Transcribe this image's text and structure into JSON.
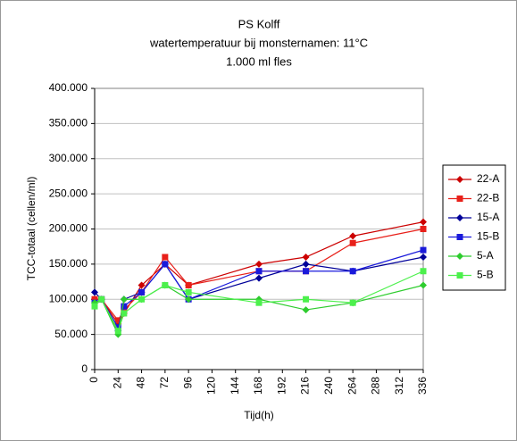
{
  "chart_data": {
    "type": "line",
    "title": "PS Kolff",
    "subtitle": "watertemperatuur bij monsternamen: 11°C",
    "subtitle2": "1.000 ml fles",
    "x_label": "Tijd(h)",
    "y_label": "TCC-totaal (cellen/ml)",
    "x": [
      0,
      7,
      24,
      30,
      48,
      72,
      96,
      168,
      216,
      264,
      336
    ],
    "series": [
      {
        "name": "22-A",
        "color": "#cc0000",
        "marker": "diamond",
        "values": [
          100000,
          100000,
          65000,
          80000,
          120000,
          150000,
          120000,
          150000,
          160000,
          190000,
          210000
        ]
      },
      {
        "name": "22-B",
        "color": "#e8201a",
        "marker": "square",
        "values": [
          100000,
          100000,
          70000,
          85000,
          110000,
          160000,
          120000,
          140000,
          140000,
          180000,
          200000
        ]
      },
      {
        "name": "15-A",
        "color": "#000099",
        "marker": "diamond",
        "values": [
          110000,
          100000,
          55000,
          100000,
          110000,
          150000,
          100000,
          130000,
          150000,
          140000,
          160000
        ]
      },
      {
        "name": "15-B",
        "color": "#1a1adb",
        "marker": "square",
        "values": [
          95000,
          100000,
          60000,
          90000,
          110000,
          150000,
          100000,
          140000,
          140000,
          140000,
          170000
        ]
      },
      {
        "name": "5-A",
        "color": "#2ecc2e",
        "marker": "diamond",
        "values": [
          95000,
          100000,
          50000,
          100000,
          100000,
          120000,
          100000,
          100000,
          85000,
          95000,
          120000
        ]
      },
      {
        "name": "5-B",
        "color": "#4cf04c",
        "marker": "square",
        "values": [
          90000,
          100000,
          55000,
          80000,
          100000,
          120000,
          110000,
          95000,
          100000,
          95000,
          140000
        ]
      }
    ],
    "xlim": [
      0,
      336
    ],
    "xticks": [
      0,
      24,
      48,
      72,
      96,
      120,
      144,
      168,
      192,
      216,
      240,
      264,
      288,
      312,
      336
    ],
    "ylim": [
      0,
      400000
    ],
    "yticks": [
      0,
      {
        "value": 50000,
        "label": "50.000"
      },
      {
        "value": 100000,
        "label": "100.000"
      },
      {
        "value": 150000,
        "label": "150.000"
      },
      {
        "value": 200000,
        "label": "200.000"
      },
      {
        "value": 250000,
        "label": "250.000"
      },
      {
        "value": 300000,
        "label": "300.000"
      },
      {
        "value": 350000,
        "label": "350.000"
      },
      {
        "value": 400000,
        "label": "400.000"
      }
    ],
    "grid": true,
    "legend": "right"
  }
}
